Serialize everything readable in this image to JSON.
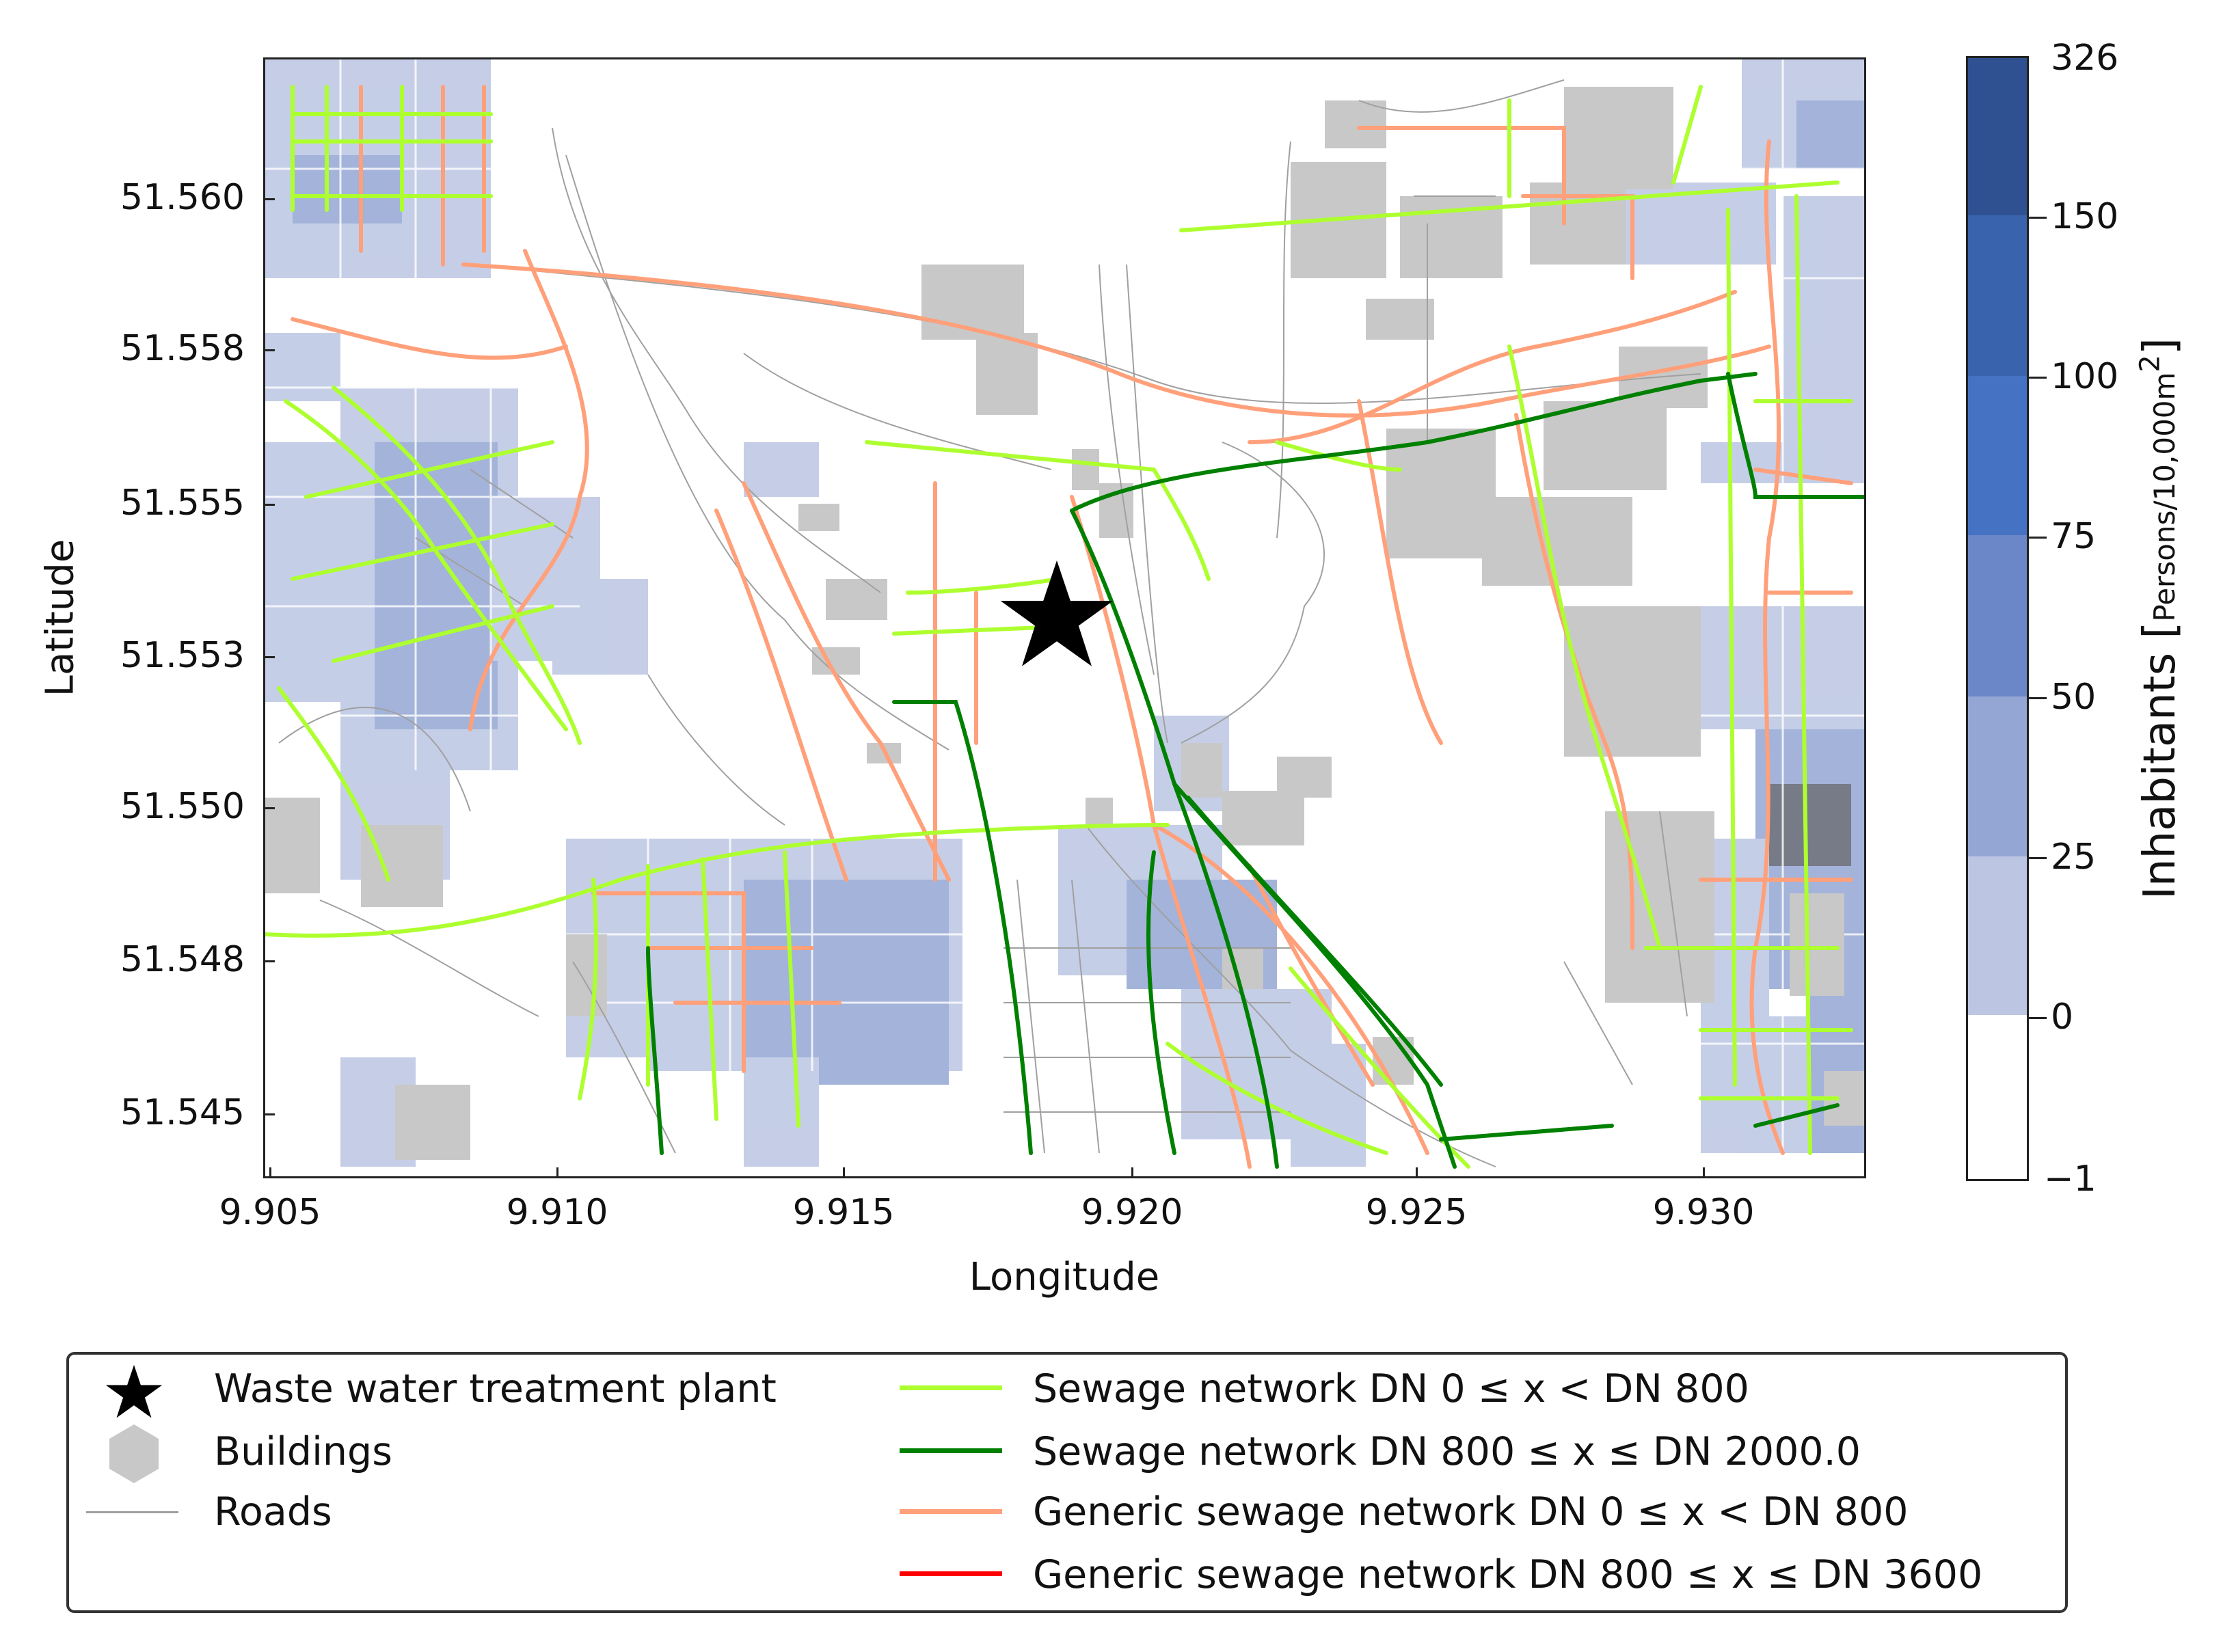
{
  "axes": {
    "xlabel": "Longitude",
    "ylabel": "Latitude",
    "xticks": [
      "9.905",
      "9.910",
      "9.915",
      "9.920",
      "9.925",
      "9.930"
    ],
    "yticks": [
      "51.560",
      "51.558",
      "51.555",
      "51.553",
      "51.550",
      "51.548",
      "51.545"
    ],
    "xlim": [
      9.9049,
      9.9342
    ],
    "ylim": [
      51.5441,
      51.5624
    ]
  },
  "colorbar": {
    "title": "Inhabitants",
    "unit_main": "Persons/10,000m",
    "unit_sup": "2",
    "labels": [
      "326",
      "150",
      "100",
      "75",
      "50",
      "25",
      "0",
      "−1"
    ],
    "colors": [
      "#2f5191",
      "#3a63ad",
      "#4672c4",
      "#6b87c8",
      "#93a6d4",
      "#bcc6e3",
      "#ffffff"
    ]
  },
  "marker": {
    "name": "Waste water treatment plant",
    "lon": 9.9194,
    "lat": 51.5533
  },
  "legend": {
    "items": [
      {
        "label": "Waste water treatment plant",
        "symbol": "star",
        "color": "#000000"
      },
      {
        "label": "Buildings",
        "symbol": "hexagon",
        "color": "#c8c8c8"
      },
      {
        "label": "Roads",
        "symbol": "line-thin",
        "color": "#a0a0a0"
      },
      {
        "label": "Sewage network DN 0 ≤ x < DN 800",
        "symbol": "line",
        "color": "#adff2f"
      },
      {
        "label": "Sewage network DN 800 ≤ x ≤ DN 2000.0",
        "symbol": "line",
        "color": "#008000"
      },
      {
        "label": "Generic sewage network DN 0 ≤ x < DN 800",
        "symbol": "line",
        "color": "#ffa07a"
      },
      {
        "label": "Generic sewage network DN 800 ≤ x ≤ DN 3600",
        "symbol": "line",
        "color": "#ff0000"
      }
    ]
  },
  "colors": {
    "road": "#a0a0a0",
    "building": "#c8c8c8",
    "sewage_small": "#adff2f",
    "sewage_large": "#008000",
    "generic_small": "#ffa07a",
    "generic_large": "#ff0000"
  }
}
